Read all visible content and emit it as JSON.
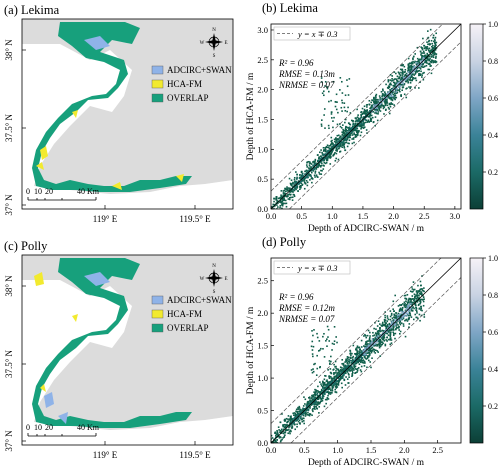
{
  "colors": {
    "land": "#dcdcdc",
    "water": "#ffffff",
    "adcirc": "#8fb3e8",
    "hca": "#f2ea2e",
    "overlap": "#17a07c",
    "scatter": "#0f5e4a",
    "frame": "#000000"
  },
  "icons": {
    "compass": "compass-rose-icon"
  },
  "maps": [
    {
      "panel": "(a) Lekima",
      "lat_ticks": [
        "38° N",
        "37.5° N",
        "37° N"
      ],
      "lon_ticks": [
        "119° E",
        "119.5° E"
      ],
      "legend": [
        "ADCIRC+SWAN",
        "HCA-FM",
        "OVERLAP"
      ],
      "compass": {
        "n": "N",
        "s": "S",
        "e": "E",
        "w": "W"
      },
      "scale": {
        "labels": [
          "0",
          "10",
          "20",
          "40"
        ],
        "unit": "Km"
      }
    },
    {
      "panel": "(c) Polly",
      "lat_ticks": [
        "38° N",
        "37.5° N",
        "37° N"
      ],
      "lon_ticks": [
        "119° E",
        "119.5° E"
      ],
      "legend": [
        "ADCIRC+SWAN",
        "HCA-FM",
        "OVERLAP"
      ],
      "compass": {
        "n": "N",
        "s": "S",
        "e": "E",
        "w": "W"
      },
      "scale": {
        "labels": [
          "0",
          "10",
          "20",
          "40"
        ],
        "unit": "Km"
      }
    }
  ],
  "chart_data": [
    {
      "type": "scatter",
      "title": "(b) Lekima",
      "xlabel": "Depth of ADCIRC-SWAN / m",
      "ylabel": "Depth of HCA-FM / m",
      "xlim": [
        0,
        3.1
      ],
      "ylim": [
        0,
        3.1
      ],
      "xticks": [
        0.0,
        0.5,
        1.0,
        1.5,
        2.0,
        2.5,
        3.0
      ],
      "yticks": [
        0.0,
        0.5,
        1.0,
        1.5,
        2.0,
        2.5,
        3.0
      ],
      "legend": "y = x ∓ 0.3",
      "legend_position": "top-left",
      "band": 0.3,
      "stats": [
        "R² = 0.96",
        "RMSE = 0.13m",
        "NRMSE = 0.07"
      ],
      "point_cloud": {
        "x_range": [
          0,
          2.7
        ],
        "spread": 0.13,
        "outlier_region": [
          0.8,
          1.3,
          1.3,
          2.2
        ]
      },
      "colorbar": {
        "ticks": [
          "0.2",
          "0.4",
          "0.6",
          "0.8",
          "1.0"
        ],
        "range": [
          0,
          1
        ]
      }
    },
    {
      "type": "scatter",
      "title": "(d) Polly",
      "xlabel": "Depth of ADCIRC-SWAN / m",
      "ylabel": "Depth of HCA-FM / m",
      "xlim": [
        0,
        2.85
      ],
      "ylim": [
        0,
        2.85
      ],
      "xticks": [
        0.0,
        0.5,
        1.0,
        1.5,
        2.0,
        2.5
      ],
      "yticks": [
        0.0,
        0.5,
        1.0,
        1.5,
        2.0,
        2.5
      ],
      "legend": "y = x ∓ 0.3",
      "legend_position": "top-left",
      "band": 0.3,
      "stats": [
        "R² = 0.96",
        "RMSE = 0.12m",
        "NRMSE = 0.07"
      ],
      "point_cloud": {
        "x_range": [
          0,
          2.3
        ],
        "spread": 0.12,
        "outlier_region": [
          0.6,
          1.0,
          1.0,
          1.8
        ]
      },
      "colorbar": {
        "ticks": [
          "0.2",
          "0.4",
          "0.6",
          "0.8",
          "1.0"
        ],
        "range": [
          0,
          1
        ]
      }
    }
  ]
}
